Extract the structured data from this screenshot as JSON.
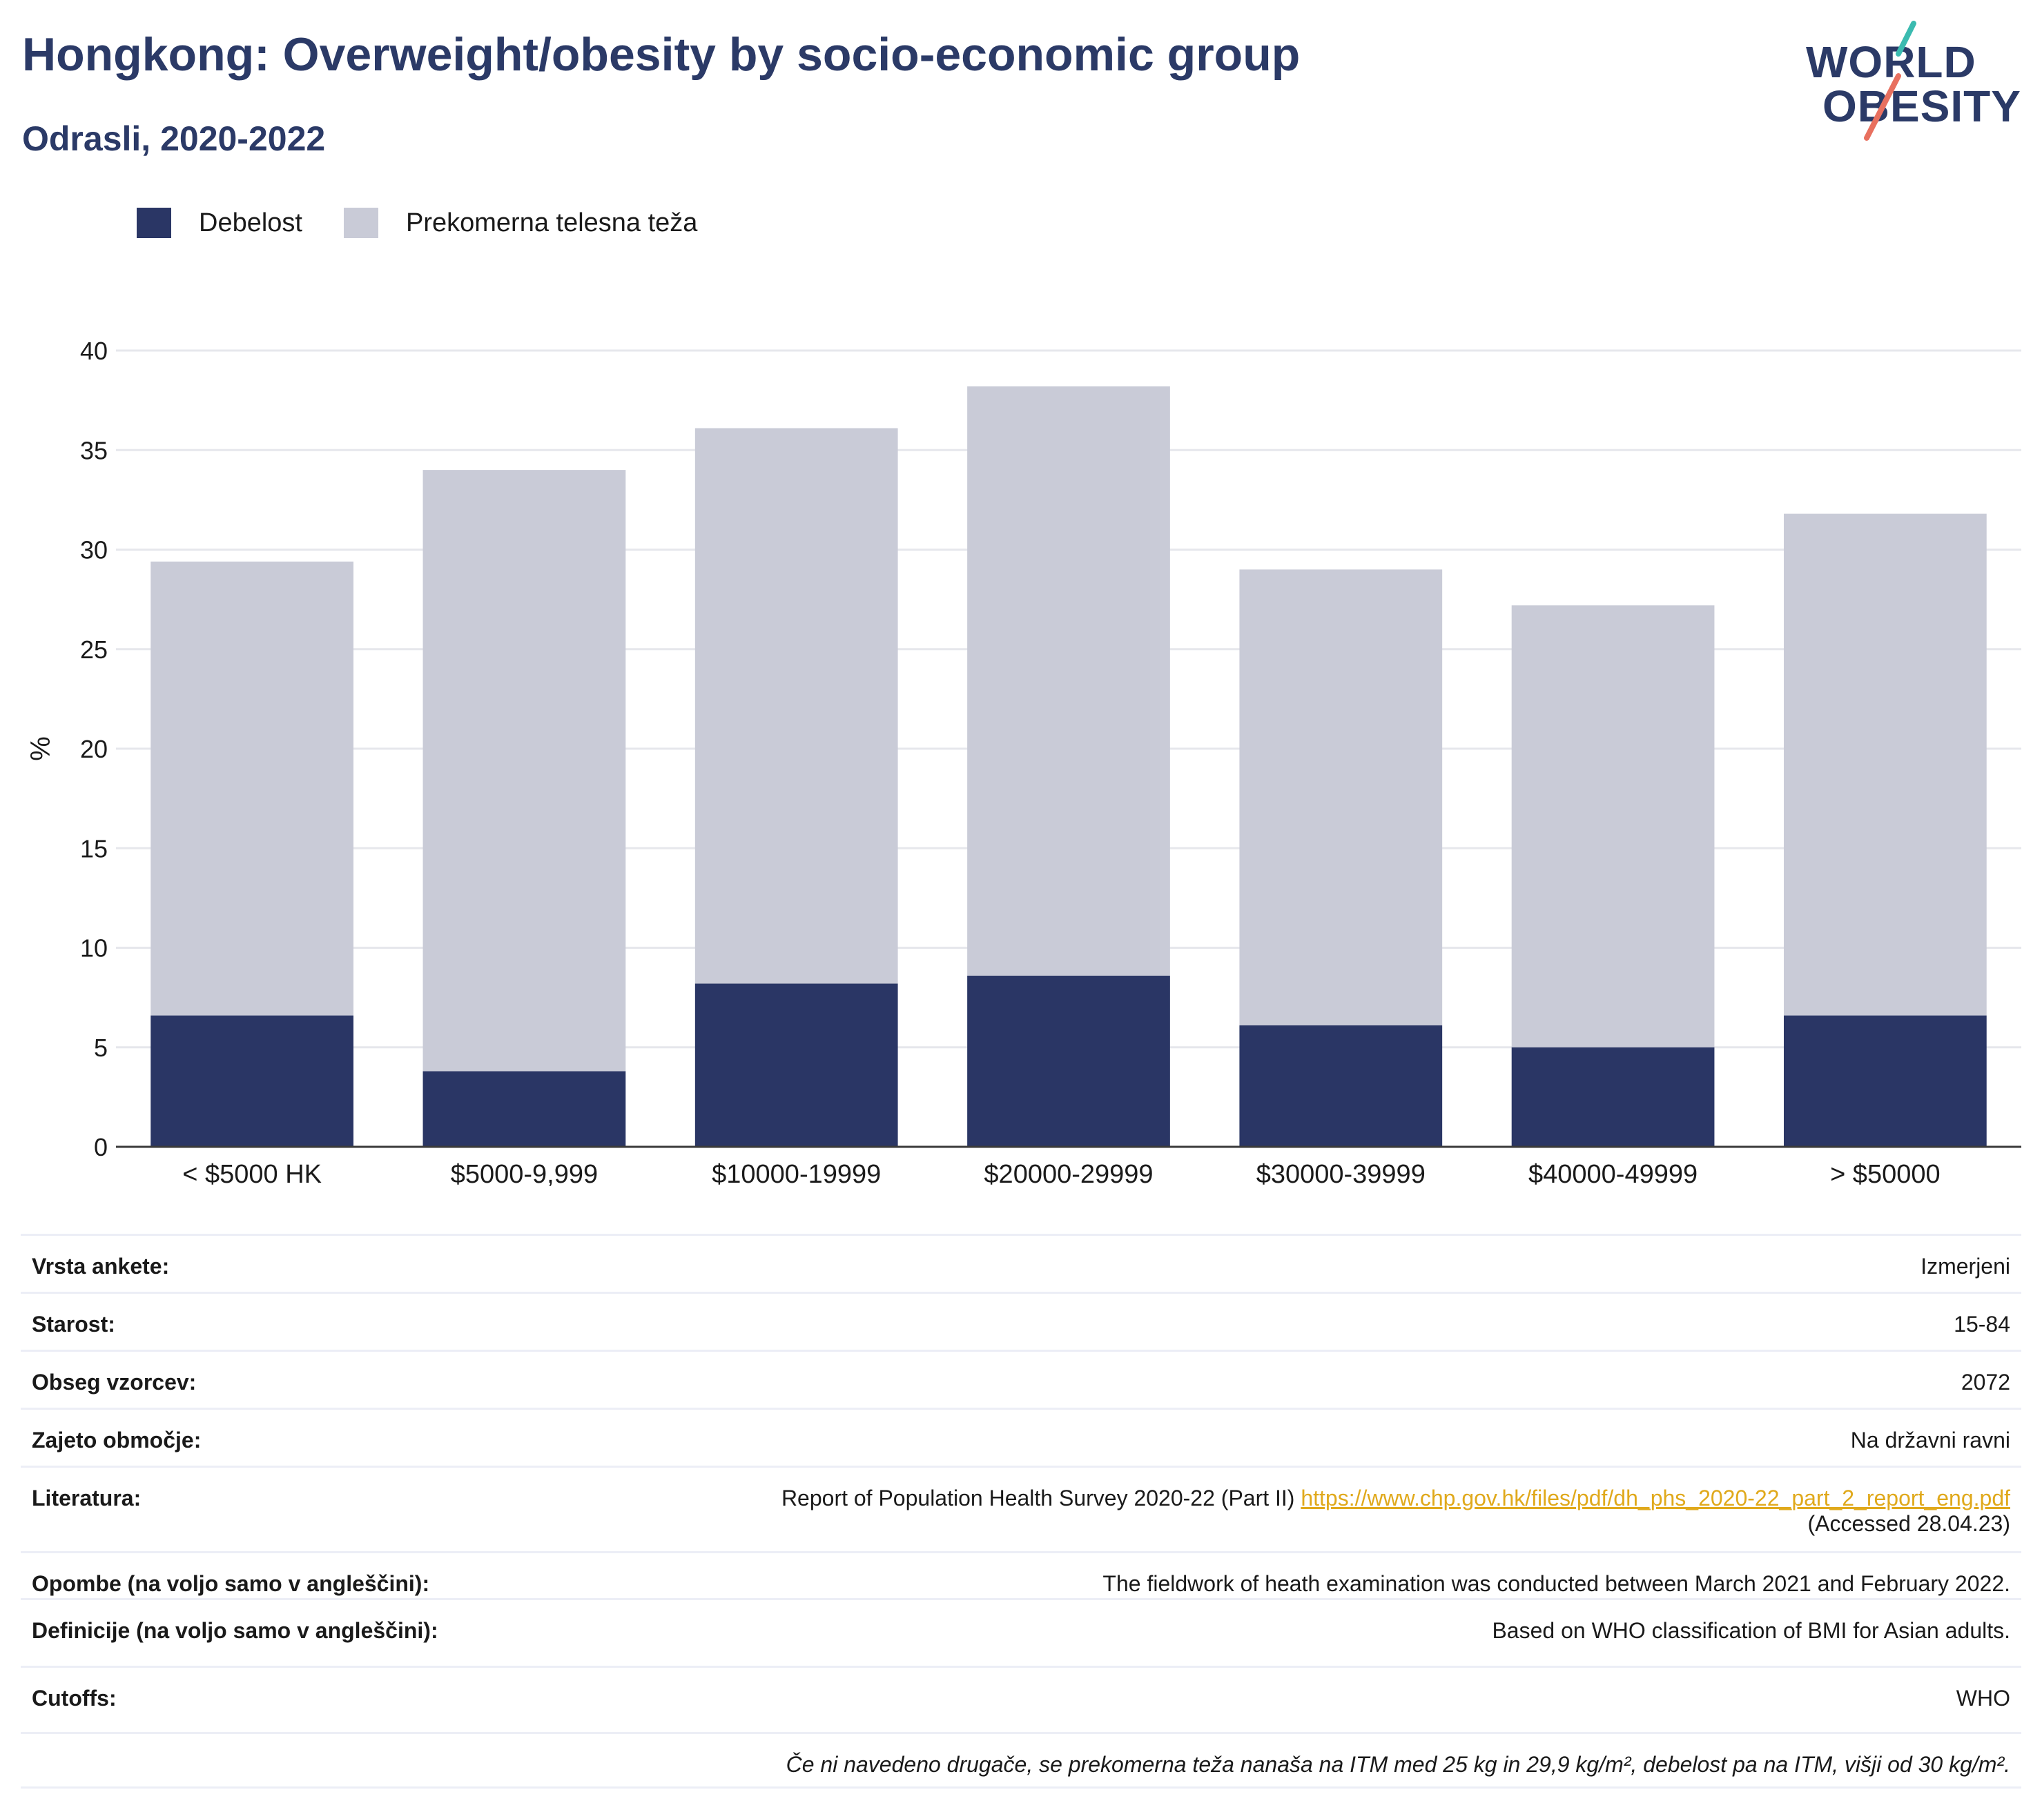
{
  "header": {
    "title": "Hongkong: Overweight/obesity by socio-economic group",
    "subtitle": "Odrasli, 2020-2022",
    "logo_line1": "WORLD",
    "logo_line2": "OBESITY"
  },
  "legend": {
    "items": [
      {
        "label": "Debelost",
        "color": "#2a3665"
      },
      {
        "label": "Prekomerna telesna teža",
        "color": "#c9cbd7"
      }
    ]
  },
  "chart_data": {
    "type": "bar",
    "stacked": true,
    "categories": [
      "< $5000 HK",
      "$5000-9,999",
      "$10000-19999",
      "$20000-29999",
      "$30000-39999",
      "$40000-49999",
      "> $50000"
    ],
    "series": [
      {
        "name": "Debelost",
        "color": "#2a3665",
        "values": [
          6.6,
          3.8,
          8.2,
          8.6,
          6.1,
          5.0,
          6.6
        ]
      },
      {
        "name": "Prekomerna telesna teža",
        "color": "#c9cbd7",
        "values": [
          22.8,
          30.2,
          27.9,
          29.6,
          22.9,
          22.2,
          25.2
        ]
      }
    ],
    "ylabel": "%",
    "xlabel": "",
    "ylim": [
      0,
      40
    ],
    "yticks": [
      0,
      5,
      10,
      15,
      20,
      25,
      30,
      35,
      40
    ],
    "grid": true
  },
  "info": {
    "rows": [
      {
        "key": "Vrsta ankete:",
        "value": "Izmerjeni"
      },
      {
        "key": "Starost:",
        "value": "15-84"
      },
      {
        "key": "Obseg vzorcev:",
        "value": "2072"
      },
      {
        "key": "Zajeto območje:",
        "value": "Na državni ravni"
      },
      {
        "key": "Literatura:",
        "value": "Report of Population Health Survey 2020-22 (Part II)",
        "link": "https://www.chp.gov.hk/files/pdf/dh_phs_2020-22_part_2_report_eng.pdf",
        "value2": "(Accessed 28.04.23)"
      },
      {
        "key": "Opombe (na voljo samo v angleščini):",
        "value": "The fieldwork of heath examination was conducted between March 2021 and February 2022."
      },
      {
        "key": "Definicije (na voljo samo v angleščini):",
        "value": "Based on WHO classification of BMI for Asian adults."
      },
      {
        "key": "Cutoffs:",
        "value": "WHO"
      }
    ],
    "footnote": "Če ni navedeno drugače, se prekomerna teža nanaša na ITM med 25 kg in 29,9 kg/m², debelost pa na ITM, višji od 30 kg/m²."
  }
}
